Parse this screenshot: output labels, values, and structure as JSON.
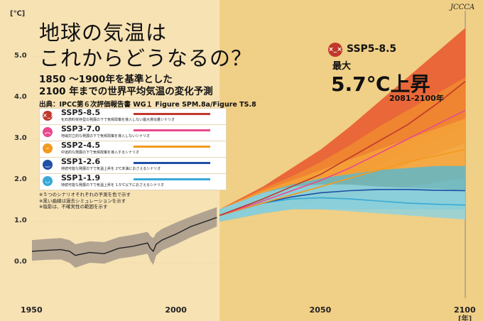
{
  "title_lines": [
    "地球の気温は",
    "これからどうなるの？"
  ],
  "subtitle_lines": [
    "1850 ～1900年を基準とした",
    "2100 年までの世界平均気温の変化予測"
  ],
  "source": "出典：IPCC第６次評価報告書 WG１ Figure SPM.8a/Figure TS.8",
  "logo": "JCCCA",
  "callout": {
    "scenario": "SSP5-8.5",
    "icon": "sad-face-icon",
    "max_label": "最大",
    "rise": "5.7℃上昇",
    "period": "2081-2100年"
  },
  "legend": [
    {
      "name": "SSP5-8.5",
      "desc": "化石燃料依存型の発展の下で気候政策を導入しない最大排出量シナリオ",
      "color": "#c0392b",
      "icon": "sad-face-icon"
    },
    {
      "name": "SSP3-7.0",
      "desc": "地域対立的な発展の下で気候政策を導入しないシナリオ",
      "color": "#e84a8c",
      "icon": "frown-face-icon"
    },
    {
      "name": "SSP2-4.5",
      "desc": "中道的な発展の下で気候政策を導入するシナリオ",
      "color": "#f39a1e",
      "icon": "neutral-face-icon"
    },
    {
      "name": "SSP1-2.6",
      "desc": "持続可能な発展の下で気温上昇を 2℃未満におさえるシナリオ",
      "color": "#1f4fa6",
      "icon": "smile-face-icon"
    },
    {
      "name": "SSP1-1.9",
      "desc": "持続可能な発展の下で気温上昇を 1.5℃以下におさえるシナリオ",
      "color": "#38a9d6",
      "icon": "happy-face-icon"
    }
  ],
  "notes": [
    "※５つのシナリオそれぞれの予測を色で示す",
    "※黒い曲線は過去シミュレーションを示す",
    "※陰影は、不確実性の範囲を示す"
  ],
  "chart_data": {
    "type": "line",
    "y_unit": "[℃]",
    "x_unit": "[年]",
    "ylim": [
      -0.5,
      5.8
    ],
    "xlim": [
      1950,
      2100
    ],
    "y_ticks": [
      "0.0",
      "1.0",
      "2.0",
      "3.0",
      "4.0",
      "5.0"
    ],
    "x_ticks": [
      "1950",
      "2000",
      "2050",
      "2100"
    ],
    "historical": {
      "x": [
        1950,
        1955,
        1960,
        1963,
        1965,
        1970,
        1975,
        1980,
        1985,
        1990,
        1991,
        1992,
        1993,
        1995,
        2000,
        2005,
        2010,
        2014
      ],
      "y": [
        0.28,
        0.3,
        0.32,
        0.28,
        0.18,
        0.25,
        0.22,
        0.35,
        0.4,
        0.48,
        0.35,
        0.28,
        0.45,
        0.55,
        0.7,
        0.88,
        1.0,
        1.1
      ],
      "lo": [
        0.05,
        0.07,
        0.08,
        0.0,
        -0.12,
        0.0,
        -0.02,
        0.1,
        0.15,
        0.22,
        0.05,
        -0.05,
        0.18,
        0.3,
        0.45,
        0.62,
        0.76,
        0.88
      ],
      "hi": [
        0.55,
        0.58,
        0.6,
        0.55,
        0.45,
        0.52,
        0.5,
        0.62,
        0.68,
        0.75,
        0.65,
        0.6,
        0.72,
        0.82,
        0.98,
        1.12,
        1.25,
        1.35
      ]
    },
    "series": [
      {
        "name": "SSP5-8.5",
        "x": [
          2015,
          2030,
          2040,
          2050,
          2060,
          2070,
          2080,
          2090,
          2100
        ],
        "y": [
          1.15,
          1.55,
          1.85,
          2.15,
          2.55,
          2.95,
          3.35,
          3.85,
          4.4
        ],
        "lo": [
          1.0,
          1.3,
          1.5,
          1.7,
          2.0,
          2.35,
          2.7,
          3.0,
          3.3
        ],
        "hi": [
          1.3,
          1.85,
          2.3,
          2.75,
          3.3,
          3.9,
          4.5,
          5.1,
          5.7
        ]
      },
      {
        "name": "SSP3-7.0",
        "x": [
          2015,
          2030,
          2040,
          2050,
          2060,
          2070,
          2080,
          2090,
          2100
        ],
        "y": [
          1.15,
          1.5,
          1.75,
          2.0,
          2.3,
          2.65,
          3.0,
          3.35,
          3.7
        ],
        "lo": [
          1.0,
          1.25,
          1.45,
          1.6,
          1.85,
          2.1,
          2.4,
          2.65,
          2.9
        ],
        "hi": [
          1.3,
          1.8,
          2.1,
          2.45,
          2.85,
          3.3,
          3.7,
          4.1,
          4.5
        ]
      },
      {
        "name": "SSP2-4.5",
        "x": [
          2015,
          2030,
          2040,
          2050,
          2060,
          2070,
          2080,
          2090,
          2100
        ],
        "y": [
          1.15,
          1.45,
          1.65,
          1.85,
          2.05,
          2.25,
          2.45,
          2.6,
          2.75
        ],
        "lo": [
          1.0,
          1.2,
          1.35,
          1.5,
          1.6,
          1.75,
          1.85,
          1.95,
          2.05
        ],
        "hi": [
          1.3,
          1.75,
          2.0,
          2.25,
          2.5,
          2.75,
          3.0,
          3.25,
          3.5
        ]
      },
      {
        "name": "SSP1-2.6",
        "x": [
          2015,
          2030,
          2040,
          2050,
          2060,
          2070,
          2080,
          2090,
          2100
        ],
        "y": [
          1.15,
          1.45,
          1.6,
          1.7,
          1.75,
          1.78,
          1.78,
          1.76,
          1.75
        ],
        "lo": [
          1.0,
          1.2,
          1.3,
          1.3,
          1.3,
          1.3,
          1.3,
          1.3,
          1.3
        ],
        "hi": [
          1.3,
          1.7,
          1.9,
          2.05,
          2.15,
          2.25,
          2.3,
          2.35,
          2.35
        ]
      },
      {
        "name": "SSP1-1.9",
        "x": [
          2015,
          2030,
          2040,
          2050,
          2060,
          2070,
          2080,
          2090,
          2100
        ],
        "y": [
          1.15,
          1.45,
          1.55,
          1.58,
          1.55,
          1.5,
          1.45,
          1.42,
          1.4
        ],
        "lo": [
          1.0,
          1.2,
          1.3,
          1.3,
          1.25,
          1.2,
          1.15,
          1.1,
          1.05
        ],
        "hi": [
          1.3,
          1.7,
          1.85,
          1.9,
          1.9,
          1.85,
          1.82,
          1.8,
          1.75
        ]
      }
    ]
  }
}
